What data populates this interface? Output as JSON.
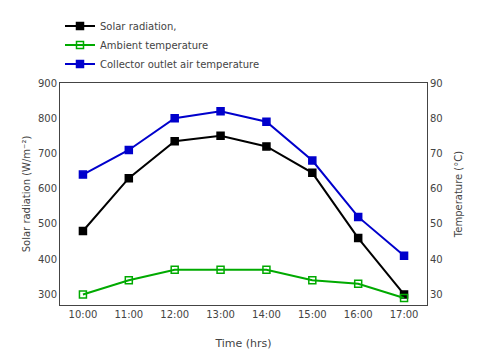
{
  "chart_data": {
    "type": "line",
    "x": [
      10,
      11,
      12,
      13,
      14,
      15,
      16,
      17
    ],
    "xlabel": "Time (hrs)",
    "ylabel": "Solar radiation (W/m⁻²)",
    "y2label": "Temperature (°C)",
    "xlim": [
      9.5,
      17.5
    ],
    "xticks": [
      {
        "value": 10,
        "label": "10:00"
      },
      {
        "value": 11,
        "label": "11:00"
      },
      {
        "value": 12,
        "label": "12:00"
      },
      {
        "value": 13,
        "label": "13:00"
      },
      {
        "value": 14,
        "label": "14:00"
      },
      {
        "value": 15,
        "label": "15:00"
      },
      {
        "value": 16,
        "label": "16:00"
      },
      {
        "value": 17,
        "label": "17:00"
      }
    ],
    "ylim": [
      270,
      900
    ],
    "yticks": [
      300,
      400,
      500,
      600,
      700,
      800,
      900
    ],
    "y2lim": [
      27,
      90
    ],
    "y2ticks": [
      30,
      40,
      50,
      60,
      70,
      80,
      90
    ],
    "grid": false,
    "legend": "top",
    "series": [
      {
        "name": "Solar radiation,",
        "color": "#000000",
        "marker": "square",
        "values": [
          480,
          630,
          735,
          750,
          720,
          645,
          460,
          300
        ]
      },
      {
        "name": "Ambient temperature",
        "color": "#00aa00",
        "marker": "square-open",
        "axis": "y2",
        "values": [
          30,
          34,
          37,
          37,
          37,
          34,
          33,
          29
        ]
      },
      {
        "name": "Collector outlet air temperature",
        "color": "#0000cc",
        "marker": "square",
        "axis": "y2",
        "values": [
          64,
          71,
          80,
          82,
          79,
          68,
          52,
          41
        ]
      }
    ]
  }
}
